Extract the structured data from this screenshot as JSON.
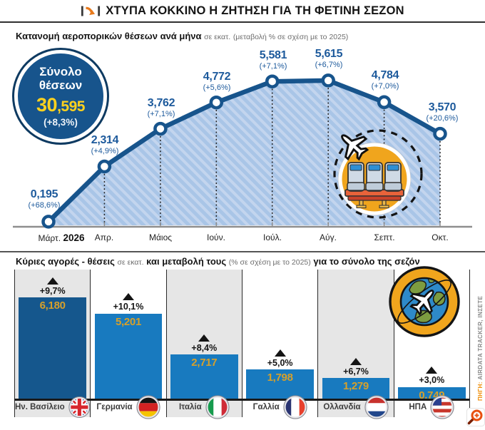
{
  "header": {
    "title": "ΧΤΥΠΑ ΚΟΚΚΙΝΟ Η ΖΗΤΗΣΗ ΓΙΑ ΤΗ ΦΕΤΙΝΗ ΣΕΖΟΝ",
    "logo_icon": "trend-arrow-icon"
  },
  "top_chart": {
    "subtitle_bold": "Κατανομή αεροπορικών θέσεων ανά μήνα",
    "subtitle_unit": "σε εκατ.",
    "subtitle_note": "(μεταβολή % σε σχέση με το 2025)",
    "total_badge": {
      "line1": "Σύνολο",
      "line2": "θέσεων",
      "value_main": "30",
      "value_rest": ",595",
      "pct": "(+8,3%)"
    },
    "points": [
      {
        "month": "Μάρτ.",
        "year": "2026",
        "value": "0,195",
        "pct": "(+68,6%)"
      },
      {
        "month": "Απρ.",
        "value": "2,314",
        "pct": "(+4,9%)"
      },
      {
        "month": "Μάιος",
        "value": "3,762",
        "pct": "(+7,1%)"
      },
      {
        "month": "Ιούν.",
        "value": "4,772",
        "pct": "(+5,6%)"
      },
      {
        "month": "Ιούλ.",
        "value": "5,581",
        "pct": "(+7,1%)"
      },
      {
        "month": "Αύγ.",
        "value": "5,615",
        "pct": "(+6,7%)"
      },
      {
        "month": "Σεπτ.",
        "value": "4,784",
        "pct": "(+7,0%)"
      },
      {
        "month": "Οκτ.",
        "value": "3,570",
        "pct": "(+20,6%)"
      }
    ],
    "illustration": "airplane-seats-icon"
  },
  "bottom_chart": {
    "subtitle_bold1": "Κύριες αγορές - θέσεις",
    "subtitle_unit": "σε εκατ.",
    "subtitle_bold2": "και μεταβολή τους",
    "subtitle_note": "(% σε σχέση με το 2025)",
    "subtitle_bold3": "για το σύνολο της σεζόν",
    "bars": [
      {
        "country": "Ην. Βασίλειο",
        "value": "6,180",
        "pct": "+9,7%",
        "flag": "uk-flag-icon"
      },
      {
        "country": "Γερμανία",
        "value": "5,201",
        "pct": "+10,1%",
        "flag": "germany-flag-icon"
      },
      {
        "country": "Ιταλία",
        "value": "2,717",
        "pct": "+8,4%",
        "flag": "italy-flag-icon"
      },
      {
        "country": "Γαλλία",
        "value": "1,798",
        "pct": "+5,0%",
        "flag": "france-flag-icon"
      },
      {
        "country": "Ολλανδία",
        "value": "1,279",
        "pct": "+6,7%",
        "flag": "netherlands-flag-icon"
      },
      {
        "country": "ΗΠΑ",
        "value": "0,749",
        "pct": "+3,0%",
        "flag": "usa-flag-icon"
      }
    ],
    "illustration": "globe-airplane-icon"
  },
  "source": {
    "label": "ΠΗΓΗ:",
    "text": "AIRDATA TRACKER, ΙΝΣΕΤΕ"
  },
  "colors": {
    "line_blue": "#17548c",
    "area_blue": "#a9c5e7",
    "area_stripe": "#c3d5ee",
    "bar_dark_blue": "#15578d",
    "bar_blue": "#187abf",
    "gold": "#d6a02b",
    "badge_gold": "#ffd21e",
    "orange": "#f0a51d",
    "panel_gray": "#e6e6e6"
  },
  "chart_data": [
    {
      "type": "area",
      "title": "Κατανομή αεροπορικών θέσεων ανά μήνα (σε εκατ.)",
      "categories": [
        "Μάρτ. 2026",
        "Απρ.",
        "Μάιος",
        "Ιούν.",
        "Ιούλ.",
        "Αύγ.",
        "Σεπτ.",
        "Οκτ."
      ],
      "values": [
        0.195,
        2.314,
        3.762,
        4.772,
        5.581,
        5.615,
        4.784,
        3.57
      ],
      "change_pct_vs_2025": [
        68.6,
        4.9,
        7.1,
        5.6,
        7.1,
        6.7,
        7.0,
        20.6
      ],
      "total": 30.595,
      "total_change_pct": 8.3,
      "xlabel": "",
      "ylabel": "θέσεις σε εκατ.",
      "ylim": [
        0,
        6
      ],
      "grid": false,
      "legend": "none"
    },
    {
      "type": "bar",
      "title": "Κύριες αγορές - θέσεις σε εκατ. και μεταβολή τους (% σε σχέση με το 2025) για το σύνολο της σεζόν",
      "categories": [
        "Ην. Βασίλειο",
        "Γερμανία",
        "Ιταλία",
        "Γαλλία",
        "Ολλανδία",
        "ΗΠΑ"
      ],
      "values": [
        6.18,
        5.201,
        2.717,
        1.798,
        1.279,
        0.749
      ],
      "change_pct_vs_2025": [
        9.7,
        10.1,
        8.4,
        5.0,
        6.7,
        3.0
      ],
      "xlabel": "",
      "ylabel": "θέσεις σε εκατ.",
      "ylim": [
        0,
        6.5
      ],
      "grid": false,
      "legend": "none"
    }
  ]
}
